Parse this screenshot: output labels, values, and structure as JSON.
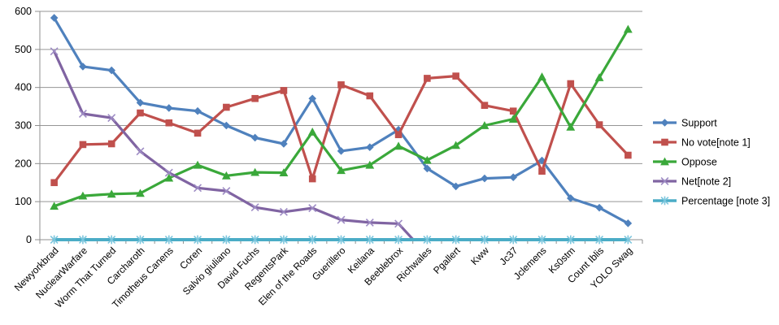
{
  "chart_data": {
    "type": "line",
    "title": "",
    "xlabel": "",
    "ylabel": "",
    "categories": [
      "Newyorkbrad",
      "NuclearWarfare",
      "Worm That Turned",
      "Carcharoth",
      "Timotheus Canens",
      "Coren",
      "Salvio giuliano",
      "David Fuchs",
      "RegentsPark",
      "Elen of the Roads",
      "Guerillero",
      "Keilana",
      "Beeblebrox",
      "Richwales",
      "Pgallert",
      "Kww",
      "Jc37",
      "Jclemens",
      "Ks0stm",
      "Count Iblis",
      "YOLO Swag"
    ],
    "series": [
      {
        "name": "Support",
        "color": "#4F81BD",
        "marker": "diamond",
        "values": [
          583,
          455,
          445,
          360,
          346,
          338,
          300,
          268,
          252,
          371,
          233,
          243,
          289,
          187,
          140,
          161,
          164,
          208,
          109,
          84,
          43
        ]
      },
      {
        "name": "No vote[note 1]",
        "color": "#C0504D",
        "marker": "square",
        "values": [
          150,
          250,
          252,
          333,
          307,
          280,
          348,
          371,
          392,
          160,
          407,
          378,
          276,
          424,
          430,
          353,
          338,
          180,
          410,
          302,
          222
        ]
      },
      {
        "name": "Oppose",
        "color": "#3AA83A",
        "marker": "triangle",
        "values": [
          88,
          115,
          120,
          122,
          162,
          196,
          168,
          177,
          176,
          283,
          182,
          196,
          246,
          209,
          248,
          300,
          317,
          428,
          296,
          426,
          553
        ]
      },
      {
        "name": "Net[note 2]",
        "color": "#8064A2",
        "marker": "x",
        "marker_color": "#9D8BC4",
        "values": [
          495,
          331,
          320,
          232,
          176,
          136,
          128,
          85,
          73,
          83,
          52,
          45,
          42,
          -40,
          null,
          null,
          null,
          null,
          null,
          null,
          null
        ]
      },
      {
        "name": "Percentage [note 3]",
        "color": "#4BACC6",
        "marker": "asterisk",
        "marker_color": "#7CC6DD",
        "values": [
          0,
          0,
          0,
          0,
          0,
          0,
          0,
          0,
          0,
          0,
          0,
          0,
          0,
          0,
          0,
          0,
          0,
          0,
          0,
          0,
          0
        ]
      }
    ],
    "ylim": [
      0,
      600
    ],
    "yticks": [
      "0",
      "100",
      "200",
      "300",
      "400",
      "500",
      "600"
    ],
    "grid": true,
    "legend_position": "right",
    "x_label_rotation": -45,
    "clip_below_axis_min": true
  },
  "colors": {
    "background": "#FFFFFF",
    "gridline": "#969696",
    "axis": "#8F8F8F",
    "text": "#000000"
  }
}
